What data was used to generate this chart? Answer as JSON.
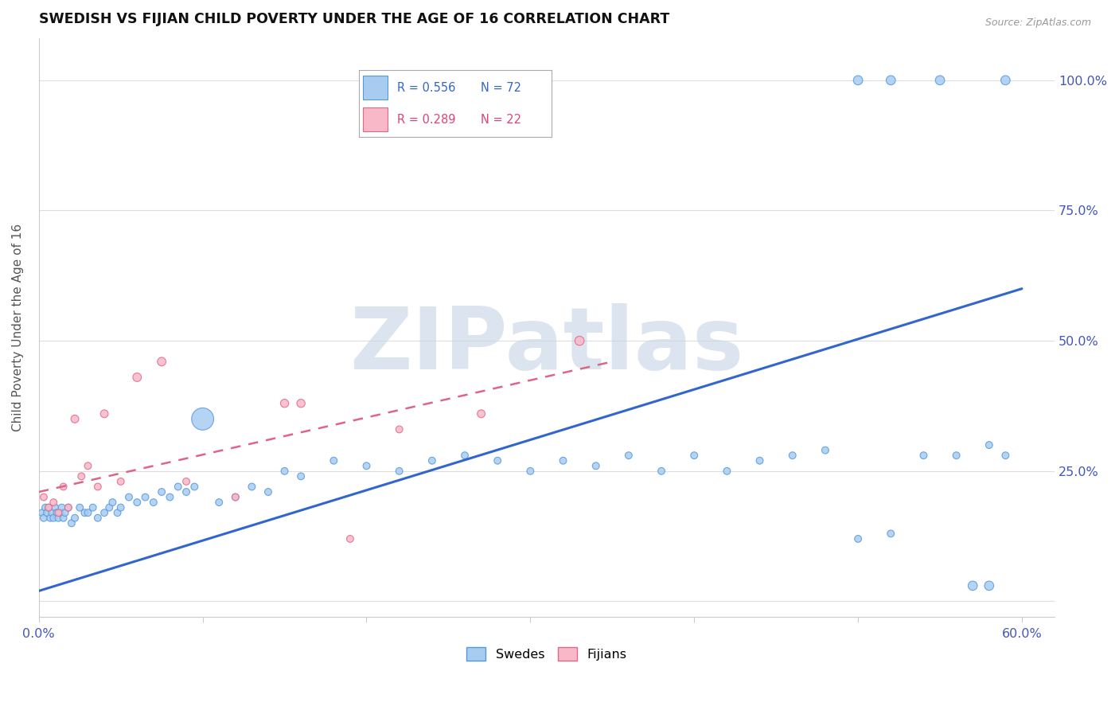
{
  "title": "SWEDISH VS FIJIAN CHILD POVERTY UNDER THE AGE OF 16 CORRELATION CHART",
  "source": "Source: ZipAtlas.com",
  "ylabel": "Child Poverty Under the Age of 16",
  "xlim": [
    0.0,
    0.62
  ],
  "ylim": [
    -0.03,
    1.08
  ],
  "xtick_pos": [
    0.0,
    0.1,
    0.2,
    0.3,
    0.4,
    0.5,
    0.6
  ],
  "xtick_labels": [
    "0.0%",
    "",
    "",
    "",
    "",
    "",
    "60.0%"
  ],
  "ytick_pos": [
    0.0,
    0.25,
    0.5,
    0.75,
    1.0
  ],
  "ytick_labels": [
    "",
    "25.0%",
    "50.0%",
    "75.0%",
    "100.0%"
  ],
  "watermark": "ZIPatlas",
  "blue_face": "#A8CCF0",
  "blue_edge": "#5599DD",
  "pink_face": "#F8B8C8",
  "pink_edge": "#E06888",
  "blue_line": "#3366CC",
  "pink_line": "#DD6688",
  "legend_R_blue": "R = 0.556",
  "legend_N_blue": "N = 72",
  "legend_R_pink": "R = 0.289",
  "legend_N_pink": "N = 22",
  "legend_blue_label": "Swedes",
  "legend_pink_label": "Fijians",
  "title_color": "#111111",
  "tick_color": "#4455BB",
  "grid_color": "#DDDDDD",
  "source_color": "#999999",
  "swedes_x": [
    0.002,
    0.003,
    0.004,
    0.005,
    0.006,
    0.007,
    0.008,
    0.009,
    0.01,
    0.011,
    0.012,
    0.013,
    0.014,
    0.015,
    0.016,
    0.018,
    0.02,
    0.022,
    0.025,
    0.028,
    0.03,
    0.033,
    0.036,
    0.04,
    0.043,
    0.045,
    0.048,
    0.05,
    0.055,
    0.06,
    0.065,
    0.07,
    0.075,
    0.08,
    0.085,
    0.09,
    0.095,
    0.1,
    0.11,
    0.12,
    0.13,
    0.14,
    0.15,
    0.16,
    0.18,
    0.2,
    0.22,
    0.24,
    0.26,
    0.28,
    0.3,
    0.32,
    0.34,
    0.36,
    0.38,
    0.4,
    0.42,
    0.44,
    0.46,
    0.48,
    0.5,
    0.52,
    0.54,
    0.56,
    0.58,
    0.59,
    0.5,
    0.52,
    0.55,
    0.57,
    0.58,
    0.59
  ],
  "swedes_y": [
    0.17,
    0.16,
    0.18,
    0.17,
    0.18,
    0.16,
    0.17,
    0.16,
    0.18,
    0.17,
    0.16,
    0.17,
    0.18,
    0.16,
    0.17,
    0.18,
    0.15,
    0.16,
    0.18,
    0.17,
    0.17,
    0.18,
    0.16,
    0.17,
    0.18,
    0.19,
    0.17,
    0.18,
    0.2,
    0.19,
    0.2,
    0.19,
    0.21,
    0.2,
    0.22,
    0.21,
    0.22,
    0.35,
    0.19,
    0.2,
    0.22,
    0.21,
    0.25,
    0.24,
    0.27,
    0.26,
    0.25,
    0.27,
    0.28,
    0.27,
    0.25,
    0.27,
    0.26,
    0.28,
    0.25,
    0.28,
    0.25,
    0.27,
    0.28,
    0.29,
    0.12,
    0.13,
    0.28,
    0.28,
    0.3,
    0.28,
    1.0,
    1.0,
    1.0,
    0.03,
    0.03,
    1.0
  ],
  "swedes_size": [
    40,
    40,
    40,
    40,
    40,
    40,
    40,
    40,
    40,
    40,
    40,
    40,
    40,
    40,
    40,
    40,
    40,
    40,
    40,
    40,
    40,
    40,
    40,
    40,
    40,
    40,
    40,
    40,
    40,
    40,
    40,
    40,
    40,
    40,
    40,
    40,
    40,
    400,
    40,
    40,
    40,
    40,
    40,
    40,
    40,
    40,
    40,
    40,
    40,
    40,
    40,
    40,
    40,
    40,
    40,
    40,
    40,
    40,
    40,
    40,
    40,
    40,
    40,
    40,
    40,
    40,
    70,
    70,
    70,
    70,
    70,
    70
  ],
  "fijians_x": [
    0.003,
    0.006,
    0.009,
    0.012,
    0.015,
    0.018,
    0.022,
    0.026,
    0.03,
    0.036,
    0.04,
    0.05,
    0.06,
    0.075,
    0.09,
    0.12,
    0.16,
    0.22,
    0.27,
    0.33,
    0.15,
    0.19
  ],
  "fijians_y": [
    0.2,
    0.18,
    0.19,
    0.17,
    0.22,
    0.18,
    0.35,
    0.24,
    0.26,
    0.22,
    0.36,
    0.23,
    0.43,
    0.46,
    0.23,
    0.2,
    0.38,
    0.33,
    0.36,
    0.5,
    0.38,
    0.12
  ],
  "fijians_size": [
    40,
    40,
    40,
    40,
    40,
    40,
    50,
    40,
    40,
    40,
    50,
    40,
    60,
    60,
    40,
    40,
    55,
    40,
    50,
    70,
    55,
    40
  ],
  "blue_line_x0": 0.0,
  "blue_line_y0": 0.02,
  "blue_line_x1": 0.6,
  "blue_line_y1": 0.6,
  "pink_line_x0": 0.0,
  "pink_line_y0": 0.21,
  "pink_line_x1": 0.35,
  "pink_line_y1": 0.46
}
